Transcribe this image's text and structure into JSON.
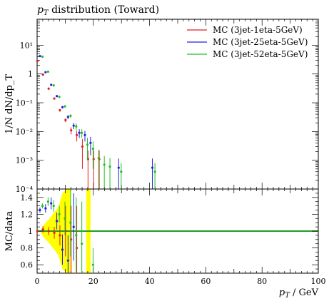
{
  "chart_data": {
    "type": "scatter",
    "title": "p_T distribution (Toward)",
    "title_parts": {
      "italic": "p",
      "sub": "T",
      "rest": " distribution (Toward)"
    },
    "xlabel": "p_T / GeV",
    "xlabel_parts": {
      "italic": "p",
      "sub": "T",
      "rest": " / GeV"
    },
    "ylabel_main": "1/N dN/dp_T",
    "ylabel_ratio": "MC/data",
    "xlim": [
      0,
      100
    ],
    "xticks": [
      0,
      20,
      40,
      60,
      80,
      100
    ],
    "main_panel": {
      "yscale": "log",
      "ylim": [
        0.0001,
        80
      ],
      "yticks": [
        {
          "value": 0.0001,
          "label": "10⁻⁴"
        },
        {
          "value": 0.001,
          "label": "10⁻³"
        },
        {
          "value": 0.01,
          "label": "10⁻²"
        },
        {
          "value": 0.1,
          "label": "10⁻¹"
        },
        {
          "value": 1,
          "label": "1"
        },
        {
          "value": 10,
          "label": "10¹"
        }
      ]
    },
    "ratio_panel": {
      "ylim": [
        0.5,
        1.5
      ],
      "yticks": [
        0.6,
        0.8,
        1.0,
        1.2,
        1.4
      ],
      "reference_line": 1.0,
      "data_band_color": "#ffff00",
      "data_band": [
        {
          "x": 1.5,
          "lo": 0.97,
          "hi": 1.03
        },
        {
          "x": 3.0,
          "lo": 0.9,
          "hi": 1.1
        },
        {
          "x": 4.5,
          "lo": 0.85,
          "hi": 1.15
        },
        {
          "x": 6.0,
          "lo": 0.78,
          "hi": 1.22
        },
        {
          "x": 7.5,
          "lo": 0.72,
          "hi": 1.28
        },
        {
          "x": 9.0,
          "lo": 0.55,
          "hi": 1.45
        },
        {
          "x": 10.5,
          "lo": 0.5,
          "hi": 1.5
        },
        {
          "x": 12.0,
          "lo": 0.5,
          "hi": 1.5
        }
      ],
      "data_band_blocks": [
        {
          "x0": 17.5,
          "x1": 19.0,
          "lo": 0.5,
          "hi": 1.5
        }
      ]
    },
    "series": [
      {
        "name": "MC (3jet-1eta-5GeV)",
        "color": "#e02020",
        "points": [
          {
            "x": 1.0,
            "y": 2.8,
            "err": 0.05
          },
          {
            "x": 3.0,
            "y": 0.95,
            "err": 0.03
          },
          {
            "x": 5.0,
            "y": 0.31,
            "err": 0.02
          },
          {
            "x": 7.0,
            "y": 0.14,
            "err": 0.01
          },
          {
            "x": 9.0,
            "y": 0.055,
            "err": 0.006
          },
          {
            "x": 11.0,
            "y": 0.025,
            "err": 0.004
          },
          {
            "x": 13.0,
            "y": 0.011,
            "err": 0.003
          },
          {
            "x": 15.0,
            "y": 0.0075,
            "err": 0.003
          },
          {
            "x": 17.0,
            "y": 0.003,
            "err": 0.0025
          },
          {
            "x": 19.0,
            "y": 0.0011,
            "err": 0.0011
          },
          {
            "x": 21.0,
            "y": 0.0011,
            "err": 0.0011
          },
          {
            "x": 23.0,
            "y": 0.0011,
            "err": 0.0011
          }
        ],
        "ratio": [
          {
            "x": 1.0,
            "y": 1.0,
            "err": 0.02
          },
          {
            "x": 3.0,
            "y": 1.02,
            "err": 0.04
          },
          {
            "x": 5.0,
            "y": 1.0,
            "err": 0.05
          },
          {
            "x": 7.0,
            "y": 0.98,
            "err": 0.07
          },
          {
            "x": 9.0,
            "y": 0.95,
            "err": 0.12
          },
          {
            "x": 11.0,
            "y": 1.0,
            "err": 0.3
          },
          {
            "x": 13.0,
            "y": 0.9,
            "err": 0.4
          },
          {
            "x": 15.0,
            "y": 0.8,
            "err": 0.5
          }
        ]
      },
      {
        "name": "MC (3jet-25eta-5GeV)",
        "color": "#2020e0",
        "points": [
          {
            "x": 1.0,
            "y": 4.2,
            "err": 0.06
          },
          {
            "x": 3.0,
            "y": 1.15,
            "err": 0.04
          },
          {
            "x": 5.0,
            "y": 0.42,
            "err": 0.02
          },
          {
            "x": 7.0,
            "y": 0.17,
            "err": 0.012
          },
          {
            "x": 9.0,
            "y": 0.07,
            "err": 0.007
          },
          {
            "x": 11.0,
            "y": 0.032,
            "err": 0.005
          },
          {
            "x": 13.0,
            "y": 0.016,
            "err": 0.004
          },
          {
            "x": 15.0,
            "y": 0.009,
            "err": 0.003
          },
          {
            "x": 17.0,
            "y": 0.0075,
            "err": 0.003
          },
          {
            "x": 19.0,
            "y": 0.004,
            "err": 0.0025
          },
          {
            "x": 29.0,
            "y": 0.00055,
            "err": 0.0006
          },
          {
            "x": 41.0,
            "y": 0.00055,
            "err": 0.0006
          }
        ],
        "ratio": [
          {
            "x": 1.0,
            "y": 1.25,
            "err": 0.03
          },
          {
            "x": 3.0,
            "y": 1.27,
            "err": 0.05
          },
          {
            "x": 5.0,
            "y": 1.33,
            "err": 0.07
          },
          {
            "x": 7.0,
            "y": 1.12,
            "err": 0.1
          },
          {
            "x": 9.0,
            "y": 0.78,
            "err": 0.18
          },
          {
            "x": 11.0,
            "y": 0.65,
            "err": 0.3
          },
          {
            "x": 13.0,
            "y": 1.05,
            "err": 0.4
          }
        ]
      },
      {
        "name": "MC (3jet-52eta-5GeV)",
        "color": "#20c020",
        "points": [
          {
            "x": 1.0,
            "y": 4.0,
            "err": 0.06
          },
          {
            "x": 3.0,
            "y": 1.2,
            "err": 0.04
          },
          {
            "x": 5.0,
            "y": 0.4,
            "err": 0.02
          },
          {
            "x": 7.0,
            "y": 0.16,
            "err": 0.012
          },
          {
            "x": 9.0,
            "y": 0.075,
            "err": 0.008
          },
          {
            "x": 11.0,
            "y": 0.035,
            "err": 0.005
          },
          {
            "x": 13.0,
            "y": 0.015,
            "err": 0.004
          },
          {
            "x": 15.0,
            "y": 0.009,
            "err": 0.003
          },
          {
            "x": 17.0,
            "y": 0.0035,
            "err": 0.0025
          },
          {
            "x": 19.0,
            "y": 0.0025,
            "err": 0.002
          },
          {
            "x": 21.0,
            "y": 0.0012,
            "err": 0.0011
          },
          {
            "x": 23.0,
            "y": 0.0007,
            "err": 0.0007
          },
          {
            "x": 25.0,
            "y": 0.0006,
            "err": 0.0006
          },
          {
            "x": 29.0,
            "y": 0.0004,
            "err": 0.0004
          },
          {
            "x": 41.0,
            "y": 0.0004,
            "err": 0.0004
          }
        ],
        "ratio": [
          {
            "x": 1.0,
            "y": 1.3,
            "err": 0.03
          },
          {
            "x": 3.0,
            "y": 1.35,
            "err": 0.05
          },
          {
            "x": 5.0,
            "y": 1.3,
            "err": 0.07
          },
          {
            "x": 7.0,
            "y": 1.2,
            "err": 0.1
          },
          {
            "x": 9.0,
            "y": 1.15,
            "err": 0.2
          },
          {
            "x": 11.0,
            "y": 1.1,
            "err": 0.4
          },
          {
            "x": 13.0,
            "y": 0.95,
            "err": 0.45
          },
          {
            "x": 15.0,
            "y": 0.85,
            "err": 0.5
          },
          {
            "x": 19.0,
            "y": 0.6,
            "err": 0.2
          }
        ]
      }
    ],
    "legend": {
      "position": "top-right"
    },
    "grid": false
  }
}
